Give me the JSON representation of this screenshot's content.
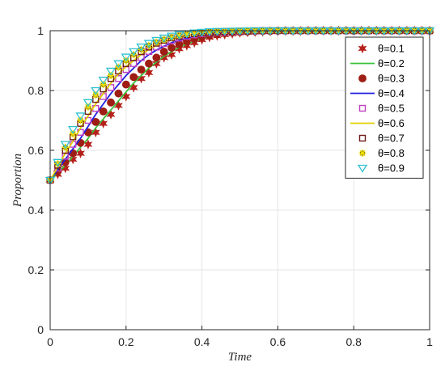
{
  "chart_data": {
    "type": "line",
    "xlabel": "Time",
    "ylabel": "Proportion",
    "xlim": [
      0,
      1
    ],
    "ylim": [
      0,
      1
    ],
    "xticks": [
      0,
      0.2,
      0.4,
      0.6,
      0.8,
      1
    ],
    "yticks": [
      0,
      0.2,
      0.4,
      0.6,
      0.8,
      1
    ],
    "x_tick_labels": [
      "0",
      "0.2",
      "0.4",
      "0.6",
      "0.8",
      "1"
    ],
    "y_tick_labels": [
      "0",
      "0.2",
      "0.4",
      "0.6",
      "0.8",
      "1"
    ],
    "grid": true,
    "legend_position": "top-right",
    "x": [
      0,
      0.02,
      0.04,
      0.06,
      0.08,
      0.1,
      0.12,
      0.14,
      0.16,
      0.18,
      0.2,
      0.22,
      0.24,
      0.26,
      0.28,
      0.3,
      0.32,
      0.34,
      0.36,
      0.38,
      0.4,
      0.42,
      0.44,
      0.46,
      0.48,
      0.5,
      0.52,
      0.54,
      0.56,
      0.58,
      0.6,
      0.62,
      0.64,
      0.66,
      0.68,
      0.7,
      0.72,
      0.74,
      0.76,
      0.78,
      0.8,
      0.82,
      0.84,
      0.86,
      0.88,
      0.9,
      0.92,
      0.94,
      0.96,
      0.98,
      1
    ],
    "series": [
      {
        "name": "θ=0.1",
        "style": "marker",
        "marker": "star6",
        "color": "#b5201a",
        "values": [
          0.5,
          0.52,
          0.54,
          0.57,
          0.59,
          0.62,
          0.66,
          0.69,
          0.72,
          0.75,
          0.78,
          0.81,
          0.84,
          0.86,
          0.89,
          0.91,
          0.92,
          0.94,
          0.95,
          0.96,
          0.97,
          0.978,
          0.983,
          0.987,
          0.99,
          0.993,
          0.995,
          0.996,
          0.997,
          0.998,
          0.998,
          0.999,
          0.999,
          0.999,
          1,
          1,
          1,
          1,
          1,
          1,
          1,
          1,
          1,
          1,
          1,
          1,
          1,
          1,
          1,
          1,
          1
        ]
      },
      {
        "name": "θ=0.2",
        "style": "line",
        "color": "#3cc23c",
        "values": [
          0.5,
          0.525,
          0.55,
          0.58,
          0.61,
          0.64,
          0.675,
          0.705,
          0.735,
          0.765,
          0.795,
          0.825,
          0.85,
          0.875,
          0.895,
          0.915,
          0.93,
          0.945,
          0.955,
          0.965,
          0.973,
          0.98,
          0.985,
          0.989,
          0.992,
          0.994,
          0.996,
          0.997,
          0.998,
          0.998,
          0.999,
          0.999,
          1,
          1,
          1,
          1,
          1,
          1,
          1,
          1,
          1,
          1,
          1,
          1,
          1,
          1,
          1,
          1,
          1,
          1,
          1
        ]
      },
      {
        "name": "θ=0.3",
        "style": "marker",
        "marker": "circle",
        "color": "#9e1d14",
        "values": [
          0.5,
          0.53,
          0.56,
          0.59,
          0.625,
          0.66,
          0.695,
          0.73,
          0.76,
          0.79,
          0.82,
          0.845,
          0.87,
          0.89,
          0.91,
          0.93,
          0.943,
          0.955,
          0.965,
          0.973,
          0.98,
          0.985,
          0.989,
          0.992,
          0.994,
          0.996,
          0.997,
          0.998,
          0.999,
          0.999,
          1,
          1,
          1,
          1,
          1,
          1,
          1,
          1,
          1,
          1,
          1,
          1,
          1,
          1,
          1,
          1,
          1,
          1,
          1,
          1,
          1
        ]
      },
      {
        "name": "θ=0.4",
        "style": "line",
        "color": "#2222e0",
        "values": [
          0.5,
          0.535,
          0.57,
          0.605,
          0.64,
          0.68,
          0.72,
          0.755,
          0.79,
          0.82,
          0.85,
          0.875,
          0.9,
          0.92,
          0.935,
          0.948,
          0.96,
          0.968,
          0.975,
          0.98,
          0.985,
          0.989,
          0.992,
          0.994,
          0.996,
          0.997,
          0.998,
          0.999,
          0.999,
          1,
          1,
          1,
          1,
          1,
          1,
          1,
          1,
          1,
          1,
          1,
          1,
          1,
          1,
          1,
          1,
          1,
          1,
          1,
          1,
          1,
          1
        ]
      },
      {
        "name": "θ=0.5",
        "style": "marker",
        "marker": "square",
        "color": "#c040c0",
        "values": [
          0.5,
          0.54,
          0.58,
          0.62,
          0.66,
          0.7,
          0.74,
          0.78,
          0.81,
          0.84,
          0.87,
          0.89,
          0.91,
          0.93,
          0.945,
          0.957,
          0.967,
          0.975,
          0.981,
          0.986,
          0.99,
          0.993,
          0.995,
          0.996,
          0.997,
          0.998,
          0.999,
          0.999,
          1,
          1,
          1,
          1,
          1,
          1,
          1,
          1,
          1,
          1,
          1,
          1,
          1,
          1,
          1,
          1,
          1,
          1,
          1,
          1,
          1,
          1,
          1
        ]
      },
      {
        "name": "θ=0.6",
        "style": "line",
        "color": "#e0d000",
        "values": [
          0.5,
          0.545,
          0.59,
          0.63,
          0.675,
          0.715,
          0.755,
          0.79,
          0.825,
          0.855,
          0.88,
          0.9,
          0.92,
          0.937,
          0.951,
          0.962,
          0.971,
          0.978,
          0.984,
          0.988,
          0.991,
          0.994,
          0.996,
          0.997,
          0.998,
          0.999,
          0.999,
          1,
          1,
          1,
          1,
          1,
          1,
          1,
          1,
          1,
          1,
          1,
          1,
          1,
          1,
          1,
          1,
          1,
          1,
          1,
          1,
          1,
          1,
          1,
          1
        ]
      },
      {
        "name": "θ=0.7",
        "style": "marker",
        "marker": "square",
        "color": "#6e1a1a",
        "values": [
          0.5,
          0.55,
          0.6,
          0.645,
          0.69,
          0.73,
          0.77,
          0.805,
          0.84,
          0.865,
          0.89,
          0.91,
          0.93,
          0.945,
          0.958,
          0.968,
          0.976,
          0.982,
          0.987,
          0.99,
          0.993,
          0.995,
          0.997,
          0.998,
          0.998,
          0.999,
          0.999,
          1,
          1,
          1,
          1,
          1,
          1,
          1,
          1,
          1,
          1,
          1,
          1,
          1,
          1,
          1,
          1,
          1,
          1,
          1,
          1,
          1,
          1,
          1,
          1
        ]
      },
      {
        "name": "θ=0.8",
        "style": "marker",
        "marker": "asterisk",
        "color": "#f0e000",
        "values": [
          0.5,
          0.555,
          0.61,
          0.655,
          0.7,
          0.745,
          0.785,
          0.82,
          0.85,
          0.878,
          0.9,
          0.92,
          0.937,
          0.951,
          0.962,
          0.971,
          0.978,
          0.984,
          0.988,
          0.991,
          0.994,
          0.996,
          0.997,
          0.998,
          0.999,
          0.999,
          1,
          1,
          1,
          1,
          1,
          1,
          1,
          1,
          1,
          1,
          1,
          1,
          1,
          1,
          1,
          1,
          1,
          1,
          1,
          1,
          1,
          1,
          1,
          1,
          1
        ]
      },
      {
        "name": "θ=0.9",
        "style": "marker",
        "marker": "triangle-down",
        "color": "#30c0d0",
        "values": [
          0.5,
          0.56,
          0.62,
          0.67,
          0.715,
          0.76,
          0.8,
          0.835,
          0.865,
          0.89,
          0.912,
          0.93,
          0.946,
          0.958,
          0.968,
          0.976,
          0.982,
          0.987,
          0.99,
          0.993,
          0.995,
          0.997,
          0.998,
          0.998,
          0.999,
          0.999,
          1,
          1,
          1,
          1,
          1,
          1,
          1,
          1,
          1,
          1,
          1,
          1,
          1,
          1,
          1,
          1,
          1,
          1,
          1,
          1,
          1,
          1,
          1,
          1,
          1
        ]
      }
    ]
  }
}
